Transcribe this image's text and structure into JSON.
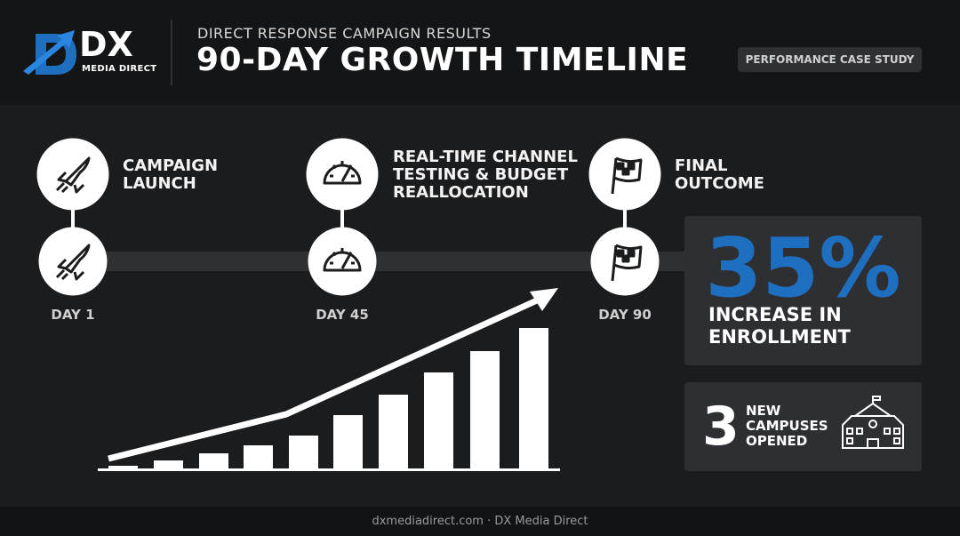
{
  "header": {
    "brand": "DX",
    "brand_sub": "MEDIA DIRECT",
    "kicker": "DIRECT RESPONSE CAMPAIGN RESULTS",
    "title": "90-DAY GROWTH TIMELINE",
    "badge": "PERFORMANCE CASE STUDY"
  },
  "milestones": [
    {
      "lines": [
        "CAMPAIGN",
        "LAUNCH"
      ],
      "day": "DAY 1"
    },
    {
      "lines": [
        "REAL-TIME CHANNEL",
        "TESTING & BUDGET",
        "REALLOCATION"
      ],
      "day": "DAY 45"
    },
    {
      "lines": [
        "FINAL",
        "OUTCOME"
      ],
      "day": "DAY 90"
    }
  ],
  "stats": [
    {
      "value": "35%",
      "lines": [
        "INCREASE IN",
        "ENROLLMENT"
      ]
    },
    {
      "value": "3",
      "lines": [
        "NEW",
        "CAMPUSES",
        "OPENED"
      ]
    }
  ],
  "footer": "dxmediadirect.com · DX Media Direct"
}
